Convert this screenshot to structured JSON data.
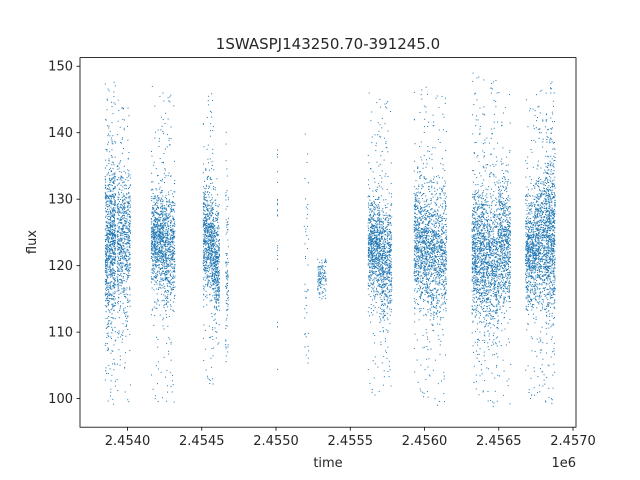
{
  "chart_data": {
    "type": "scatter",
    "title": "1SWASPJ143250.70-391245.0",
    "xlabel": "time",
    "ylabel": "flux",
    "x_offset_label": "1e6",
    "x_tick_labels": [
      "2.4540",
      "2.4545",
      "2.4550",
      "2.4555",
      "2.4560",
      "2.4565",
      "2.4570"
    ],
    "x_ticks": [
      2.454,
      2.4545,
      2.455,
      2.4555,
      2.456,
      2.4565,
      2.457
    ],
    "xlim": [
      2.45368,
      2.45702
    ],
    "y_tick_labels": [
      "100",
      "110",
      "120",
      "130",
      "140",
      "150"
    ],
    "y_ticks": [
      100,
      110,
      120,
      130,
      140,
      150
    ],
    "ylim": [
      95.7,
      151.3
    ],
    "grid": false,
    "marker_color": "#1f77b4",
    "clusters": [
      {
        "x_start": 2.45385,
        "x_end": 2.45392,
        "y_center": 123,
        "y_spread": 6.5,
        "y_min": 98.6,
        "y_max": 148.3,
        "density": 1.0
      },
      {
        "x_start": 2.45393,
        "x_end": 2.45402,
        "y_center": 124,
        "y_spread": 5.5,
        "y_min": 99,
        "y_max": 145,
        "density": 0.8
      },
      {
        "x_start": 2.45416,
        "x_end": 2.45424,
        "y_center": 124,
        "y_spread": 3.5,
        "y_min": 99,
        "y_max": 147,
        "density": 0.8
      },
      {
        "x_start": 2.45424,
        "x_end": 2.45432,
        "y_center": 123,
        "y_spread": 4.5,
        "y_min": 98.5,
        "y_max": 146,
        "density": 0.7
      },
      {
        "x_start": 2.45451,
        "x_end": 2.45458,
        "y_center": 124,
        "y_spread": 4.0,
        "y_min": 102,
        "y_max": 146,
        "density": 0.75
      },
      {
        "x_start": 2.45458,
        "x_end": 2.45462,
        "y_center": 120,
        "y_spread": 4.0,
        "y_min": 106,
        "y_max": 135,
        "density": 0.4
      },
      {
        "x_start": 2.45466,
        "x_end": 2.45468,
        "y_center": 118,
        "y_spread": 8.0,
        "y_min": 105,
        "y_max": 145,
        "density": 0.12
      },
      {
        "x_start": 2.45501,
        "x_end": 2.45501,
        "y_center": 126,
        "y_spread": 12,
        "y_min": 104,
        "y_max": 138,
        "density": 0.04
      },
      {
        "x_start": 2.45519,
        "x_end": 2.45522,
        "y_center": 120,
        "y_spread": 9,
        "y_min": 104,
        "y_max": 141,
        "density": 0.05
      },
      {
        "x_start": 2.45528,
        "x_end": 2.45534,
        "y_center": 118,
        "y_spread": 1.5,
        "y_min": 115,
        "y_max": 121,
        "density": 0.12
      },
      {
        "x_start": 2.45562,
        "x_end": 2.4557,
        "y_center": 123,
        "y_spread": 3.5,
        "y_min": 100,
        "y_max": 146,
        "density": 0.8
      },
      {
        "x_start": 2.4557,
        "x_end": 2.45578,
        "y_center": 121,
        "y_spread": 4.5,
        "y_min": 101,
        "y_max": 145,
        "density": 0.7
      },
      {
        "x_start": 2.45593,
        "x_end": 2.45603,
        "y_center": 123,
        "y_spread": 4.5,
        "y_min": 100,
        "y_max": 147,
        "density": 0.9
      },
      {
        "x_start": 2.45603,
        "x_end": 2.45615,
        "y_center": 122,
        "y_spread": 5.0,
        "y_min": 99,
        "y_max": 147,
        "density": 0.9
      },
      {
        "x_start": 2.45632,
        "x_end": 2.4564,
        "y_center": 122,
        "y_spread": 5.0,
        "y_min": 100,
        "y_max": 149,
        "density": 0.85
      },
      {
        "x_start": 2.4564,
        "x_end": 2.4565,
        "y_center": 121,
        "y_spread": 5.5,
        "y_min": 98.5,
        "y_max": 148,
        "density": 0.9
      },
      {
        "x_start": 2.4565,
        "x_end": 2.45658,
        "y_center": 123,
        "y_spread": 5.0,
        "y_min": 99,
        "y_max": 147,
        "density": 0.7
      },
      {
        "x_start": 2.45668,
        "x_end": 2.45675,
        "y_center": 122,
        "y_spread": 4.0,
        "y_min": 100,
        "y_max": 145,
        "density": 0.7
      },
      {
        "x_start": 2.45675,
        "x_end": 2.45682,
        "y_center": 124,
        "y_spread": 5.0,
        "y_min": 98.5,
        "y_max": 147,
        "density": 0.7
      },
      {
        "x_start": 2.45682,
        "x_end": 2.45688,
        "y_center": 125,
        "y_spread": 6.0,
        "y_min": 99,
        "y_max": 148,
        "density": 0.8
      }
    ]
  }
}
